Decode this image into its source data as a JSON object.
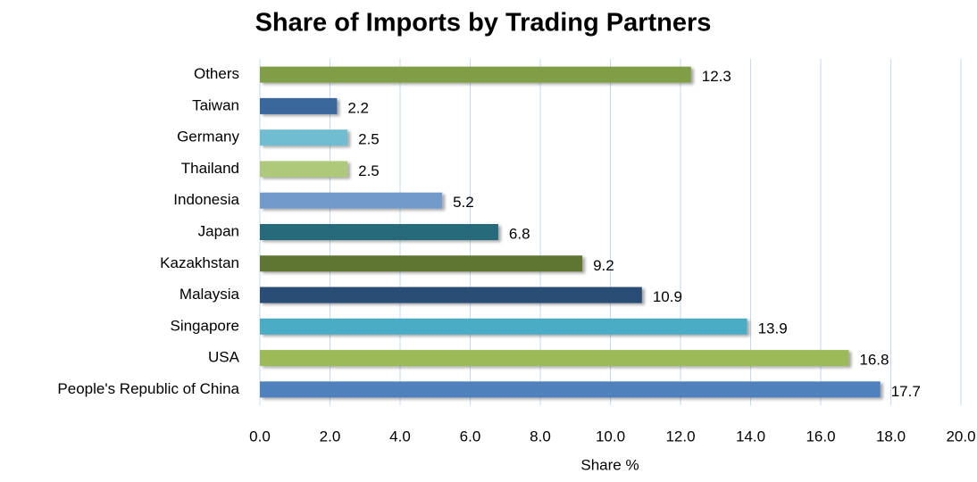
{
  "chart_data": {
    "type": "hbar",
    "title": "Share of Imports by Trading Partners",
    "xlabel": "Share %",
    "categories": [
      "People's Republic of China",
      "USA",
      "Singapore",
      "Malaysia",
      "Kazakhstan",
      "Japan",
      "Indonesia",
      "Thailand",
      "Germany",
      "Taiwan",
      "Others"
    ],
    "values": [
      17.7,
      16.8,
      13.9,
      10.9,
      9.2,
      6.8,
      5.2,
      2.5,
      2.5,
      2.2,
      12.3
    ],
    "colors": [
      "#4f81bd",
      "#9bbb59",
      "#4bacc6",
      "#2c4d75",
      "#5f7530",
      "#276a7c",
      "#729aca",
      "#afc97a",
      "#6fbdd1",
      "#3a679c",
      "#7f9e45"
    ],
    "xlim": [
      0,
      20
    ],
    "xticks": [
      {
        "value": 0,
        "label": "0.0"
      },
      {
        "value": 2,
        "label": "2.0"
      },
      {
        "value": 4,
        "label": "4.0"
      },
      {
        "value": 6,
        "label": "6.0"
      },
      {
        "value": 8,
        "label": "8.0"
      },
      {
        "value": 10,
        "label": "10.0"
      },
      {
        "value": 12,
        "label": "12.0"
      },
      {
        "value": 14,
        "label": "14.0"
      },
      {
        "value": 16,
        "label": "16.0"
      },
      {
        "value": 18,
        "label": "18.0"
      },
      {
        "value": 20,
        "label": "20.0"
      }
    ],
    "grid": true
  }
}
